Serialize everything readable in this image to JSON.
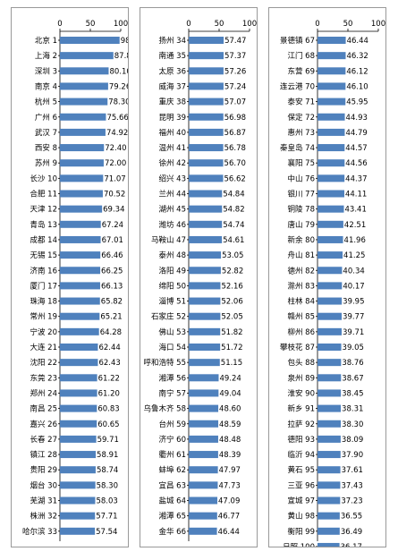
{
  "chart_data": [
    {
      "type": "bar",
      "orientation": "horizontal",
      "xlim": [
        0,
        100
      ],
      "xticks": [
        "0",
        "50",
        "100"
      ],
      "categories": [
        "北京 1",
        "上海 2",
        "深圳 3",
        "南京 4",
        "杭州 5",
        "广州 6",
        "武汉 7",
        "西安 8",
        "苏州 9",
        "长沙 10",
        "合肥 11",
        "天津 12",
        "青岛 13",
        "成都 14",
        "无锡 15",
        "济南 16",
        "厦门 17",
        "珠海 18",
        "常州 19",
        "宁波 20",
        "大连 21",
        "沈阳 22",
        "东莞 23",
        "郑州 24",
        "南昌 25",
        "嘉兴 26",
        "长春 27",
        "镇江 28",
        "贵阳 29",
        "烟台 30",
        "芜湖 31",
        "株洲 32",
        "哈尔滨 33"
      ],
      "values": [
        98.14,
        87.89,
        80.1,
        79.26,
        78.3,
        75.66,
        74.92,
        72.4,
        72.0,
        71.07,
        70.52,
        69.34,
        67.24,
        67.01,
        66.46,
        66.25,
        66.13,
        65.82,
        65.21,
        64.28,
        62.44,
        62.43,
        61.22,
        61.2,
        60.83,
        60.65,
        59.71,
        58.91,
        58.74,
        58.3,
        58.03,
        57.71,
        57.54
      ],
      "labels": [
        "98.14",
        "87.89",
        "80.10",
        "79.26",
        "78.30",
        "75.66",
        "74.92",
        "72.40",
        "72.00",
        "71.07",
        "70.52",
        "69.34",
        "67.24",
        "67.01",
        "66.46",
        "66.25",
        "66.13",
        "65.82",
        "65.21",
        "64.28",
        "62.44",
        "62.43",
        "61.22",
        "61.20",
        "60.83",
        "60.65",
        "59.71",
        "58.91",
        "58.74",
        "58.30",
        "58.03",
        "57.71",
        "57.54"
      ]
    },
    {
      "type": "bar",
      "orientation": "horizontal",
      "xlim": [
        0,
        100
      ],
      "xticks": [
        "0",
        "50",
        "100"
      ],
      "categories": [
        "扬州 34",
        "南通 35",
        "太原 36",
        "威海 37",
        "重庆 38",
        "昆明 39",
        "福州 40",
        "温州 41",
        "徐州 42",
        "绍兴 43",
        "兰州 44",
        "湖州 45",
        "潍坊 46",
        "马鞍山 47",
        "泰州 48",
        "洛阳 49",
        "绵阳 50",
        "淄博 51",
        "石家庄 52",
        "佛山 53",
        "海口 54",
        "呼和浩特 55",
        "湘潭 56",
        "南宁 57",
        "乌鲁木齐 58",
        "台州 59",
        "济宁 60",
        "衢州 61",
        "蚌埠 62",
        "宜昌 63",
        "盐城 64",
        "湘潭 65",
        "金华 66"
      ],
      "values": [
        57.47,
        57.37,
        57.26,
        57.24,
        57.07,
        56.98,
        56.87,
        56.78,
        56.7,
        56.62,
        54.84,
        54.82,
        54.74,
        54.61,
        53.05,
        52.82,
        52.16,
        52.06,
        52.05,
        51.82,
        51.72,
        51.15,
        49.24,
        49.04,
        48.6,
        48.59,
        48.48,
        48.39,
        47.97,
        47.73,
        47.09,
        46.77,
        46.44
      ],
      "labels": [
        "57.47",
        "57.37",
        "57.26",
        "57.24",
        "57.07",
        "56.98",
        "56.87",
        "56.78",
        "56.70",
        "56.62",
        "54.84",
        "54.82",
        "54.74",
        "54.61",
        "53.05",
        "52.82",
        "52.16",
        "52.06",
        "52.05",
        "51.82",
        "51.72",
        "51.15",
        "49.24",
        "49.04",
        "48.60",
        "48.59",
        "48.48",
        "48.39",
        "47.97",
        "47.73",
        "47.09",
        "46.77",
        "46.44"
      ]
    },
    {
      "type": "bar",
      "orientation": "horizontal",
      "xlim": [
        0,
        100
      ],
      "xticks": [
        "0",
        "50",
        "100"
      ],
      "categories": [
        "景德镇 67",
        "江门 68",
        "东营 69",
        "连云港 70",
        "泰安 71",
        "保定 72",
        "惠州 73",
        "秦皇岛 74",
        "襄阳 75",
        "中山 76",
        "银川 77",
        "铜陵 78",
        "唐山 79",
        "新余 80",
        "舟山 81",
        "德州 82",
        "滁州 83",
        "柱林 84",
        "赣州 85",
        "柳州 86",
        "攀枝花 87",
        "包头 88",
        "泉州 89",
        "淮安 90",
        "新乡 91",
        "拉萨 92",
        "德阳 93",
        "临沂 94",
        "黄石 95",
        "三亚 96",
        "宣城 97",
        "黄山 98",
        "衡阳 99",
        "日照 100"
      ],
      "values": [
        46.44,
        46.32,
        46.12,
        46.1,
        45.95,
        44.93,
        44.79,
        44.57,
        44.56,
        44.37,
        44.11,
        43.41,
        42.51,
        41.96,
        41.25,
        40.34,
        40.17,
        39.95,
        39.77,
        39.71,
        39.05,
        38.76,
        38.67,
        38.45,
        38.31,
        38.3,
        38.09,
        37.9,
        37.61,
        37.43,
        37.23,
        36.55,
        36.49,
        36.17
      ],
      "labels": [
        "46.44",
        "46.32",
        "46.12",
        "46.10",
        "45.95",
        "44.93",
        "44.79",
        "44.57",
        "44.56",
        "44.37",
        "44.11",
        "43.41",
        "42.51",
        "41.96",
        "41.25",
        "40.34",
        "40.17",
        "39.95",
        "39.77",
        "39.71",
        "39.05",
        "38.76",
        "38.67",
        "38.45",
        "38.31",
        "38.30",
        "38.09",
        "37.90",
        "37.61",
        "37.43",
        "37.23",
        "36.55",
        "36.49",
        "36.17"
      ]
    }
  ],
  "colors": {
    "bar": "#4f81bd"
  }
}
